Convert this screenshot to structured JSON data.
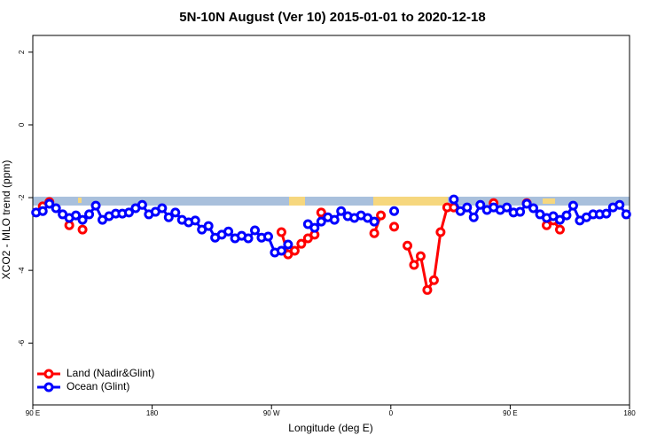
{
  "chart_data": {
    "type": "line",
    "title": "5N-10N August (Ver 10)   2015-01-01 to 2020-12-18",
    "x_label": "Longitude (deg E)",
    "y_label": "XCO2 - MLO trend (ppm)",
    "xlim": [
      90,
      540
    ],
    "ylim": [
      -7.7,
      2.46
    ],
    "xticks": [
      {
        "value": 90,
        "label": "90 E"
      },
      180,
      {
        "value": 270,
        "label": "90 W"
      },
      {
        "value": 360,
        "label": "0"
      },
      {
        "value": 450,
        "label": "90 E"
      },
      {
        "value": 540,
        "label": "180"
      }
    ],
    "yticks": [
      -6,
      -4,
      -2,
      0,
      2
    ],
    "legend": "bottom-left",
    "x": [
      92.5,
      97.5,
      102.5,
      107.5,
      112.5,
      117.5,
      122.5,
      127.5,
      132.5,
      137.5,
      142.5,
      147.5,
      152.5,
      157.5,
      162.5,
      167.5,
      172.5,
      177.5,
      182.5,
      187.5,
      192.5,
      197.5,
      202.5,
      207.5,
      212.5,
      217.5,
      222.5,
      227.5,
      232.5,
      237.5,
      242.5,
      247.5,
      252.5,
      257.5,
      262.5,
      267.5,
      272.5,
      277.5,
      282.5,
      287.5,
      292.5,
      297.5,
      302.5,
      307.5,
      312.5,
      317.5,
      322.5,
      327.5,
      332.5,
      337.5,
      342.5,
      347.5,
      352.5,
      357.5,
      362.5,
      367.5,
      372.5,
      377.5,
      382.5,
      387.5,
      392.5,
      397.5,
      402.5,
      407.5,
      412.5,
      417.5,
      422.5,
      427.5,
      432.5,
      437.5,
      442.5,
      447.5,
      452.5,
      457.5,
      462.5,
      467.5,
      472.5,
      477.5,
      482.5,
      487.5,
      492.5,
      497.5,
      502.5,
      507.5,
      512.5,
      517.5,
      522.5,
      527.5,
      532.5,
      537.5
    ],
    "series": [
      {
        "name": "Land (Nadir&Glint)",
        "color": "#ff0000",
        "values": [
          null,
          -2.24,
          -2.12,
          null,
          null,
          -2.76,
          null,
          -2.88,
          null,
          null,
          null,
          null,
          null,
          null,
          null,
          null,
          null,
          null,
          null,
          null,
          null,
          null,
          null,
          null,
          null,
          null,
          null,
          null,
          null,
          null,
          null,
          null,
          null,
          null,
          null,
          null,
          null,
          -2.95,
          -3.56,
          -3.46,
          -3.27,
          -3.12,
          -3.02,
          -2.41,
          null,
          null,
          null,
          null,
          null,
          null,
          null,
          -2.98,
          -2.49,
          null,
          -2.8,
          null,
          -3.32,
          -3.85,
          -3.61,
          -4.54,
          -4.27,
          -2.95,
          -2.27,
          -2.27,
          null,
          null,
          null,
          null,
          null,
          -2.15,
          null,
          null,
          null,
          null,
          -2.15,
          null,
          null,
          -2.76,
          -2.63,
          -2.88,
          null,
          null,
          null,
          null,
          null,
          null,
          null,
          null,
          null,
          null
        ]
      },
      {
        "name": "Ocean (Glint)",
        "color": "#0000ff",
        "values": [
          -2.41,
          -2.37,
          -2.17,
          -2.29,
          -2.46,
          -2.56,
          -2.49,
          -2.61,
          -2.46,
          -2.22,
          -2.61,
          -2.51,
          -2.44,
          -2.44,
          -2.41,
          -2.29,
          -2.2,
          -2.46,
          -2.39,
          -2.29,
          -2.54,
          -2.41,
          -2.61,
          -2.68,
          -2.63,
          -2.88,
          -2.78,
          -3.1,
          -3.02,
          -2.93,
          -3.12,
          -3.05,
          -3.12,
          -2.9,
          -3.1,
          -3.07,
          -3.51,
          -3.46,
          -3.29,
          null,
          null,
          -2.73,
          -2.83,
          -2.66,
          -2.54,
          -2.61,
          -2.37,
          -2.51,
          -2.56,
          -2.49,
          -2.56,
          -2.66,
          null,
          null,
          -2.37,
          null,
          null,
          null,
          null,
          null,
          null,
          null,
          null,
          -2.05,
          -2.37,
          -2.27,
          -2.54,
          -2.2,
          -2.34,
          -2.27,
          -2.34,
          -2.27,
          -2.41,
          -2.39,
          -2.17,
          -2.29,
          -2.46,
          -2.56,
          -2.51,
          -2.61,
          -2.49,
          -2.22,
          -2.63,
          -2.54,
          -2.46,
          -2.46,
          -2.44,
          -2.27,
          -2.2,
          -2.46
        ]
      }
    ]
  }
}
